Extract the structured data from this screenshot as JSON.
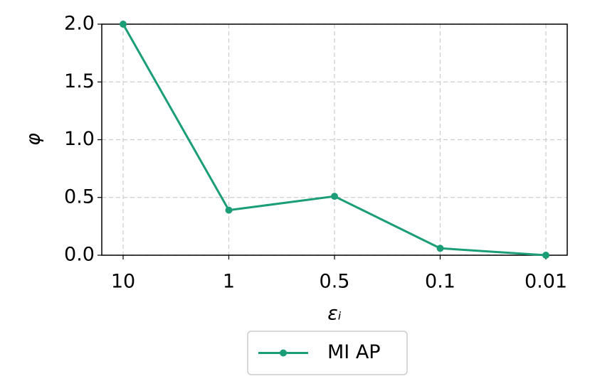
{
  "chart_data": {
    "type": "line",
    "x_label": "εᵢ",
    "y_label": "φ",
    "categories": [
      "10",
      "1",
      "0.5",
      "0.1",
      "0.01"
    ],
    "series": [
      {
        "name": "MI AP",
        "color": "#1b9e77",
        "values": [
          2.0,
          0.39,
          0.51,
          0.06,
          0.0
        ]
      }
    ],
    "ylim": [
      0,
      2
    ],
    "yticks": [
      {
        "value": 0,
        "label": "0.0"
      },
      0.5,
      {
        "value": 1,
        "label": "1.0"
      },
      1.5,
      {
        "value": 2,
        "label": "2.0"
      }
    ],
    "grid": true
  }
}
